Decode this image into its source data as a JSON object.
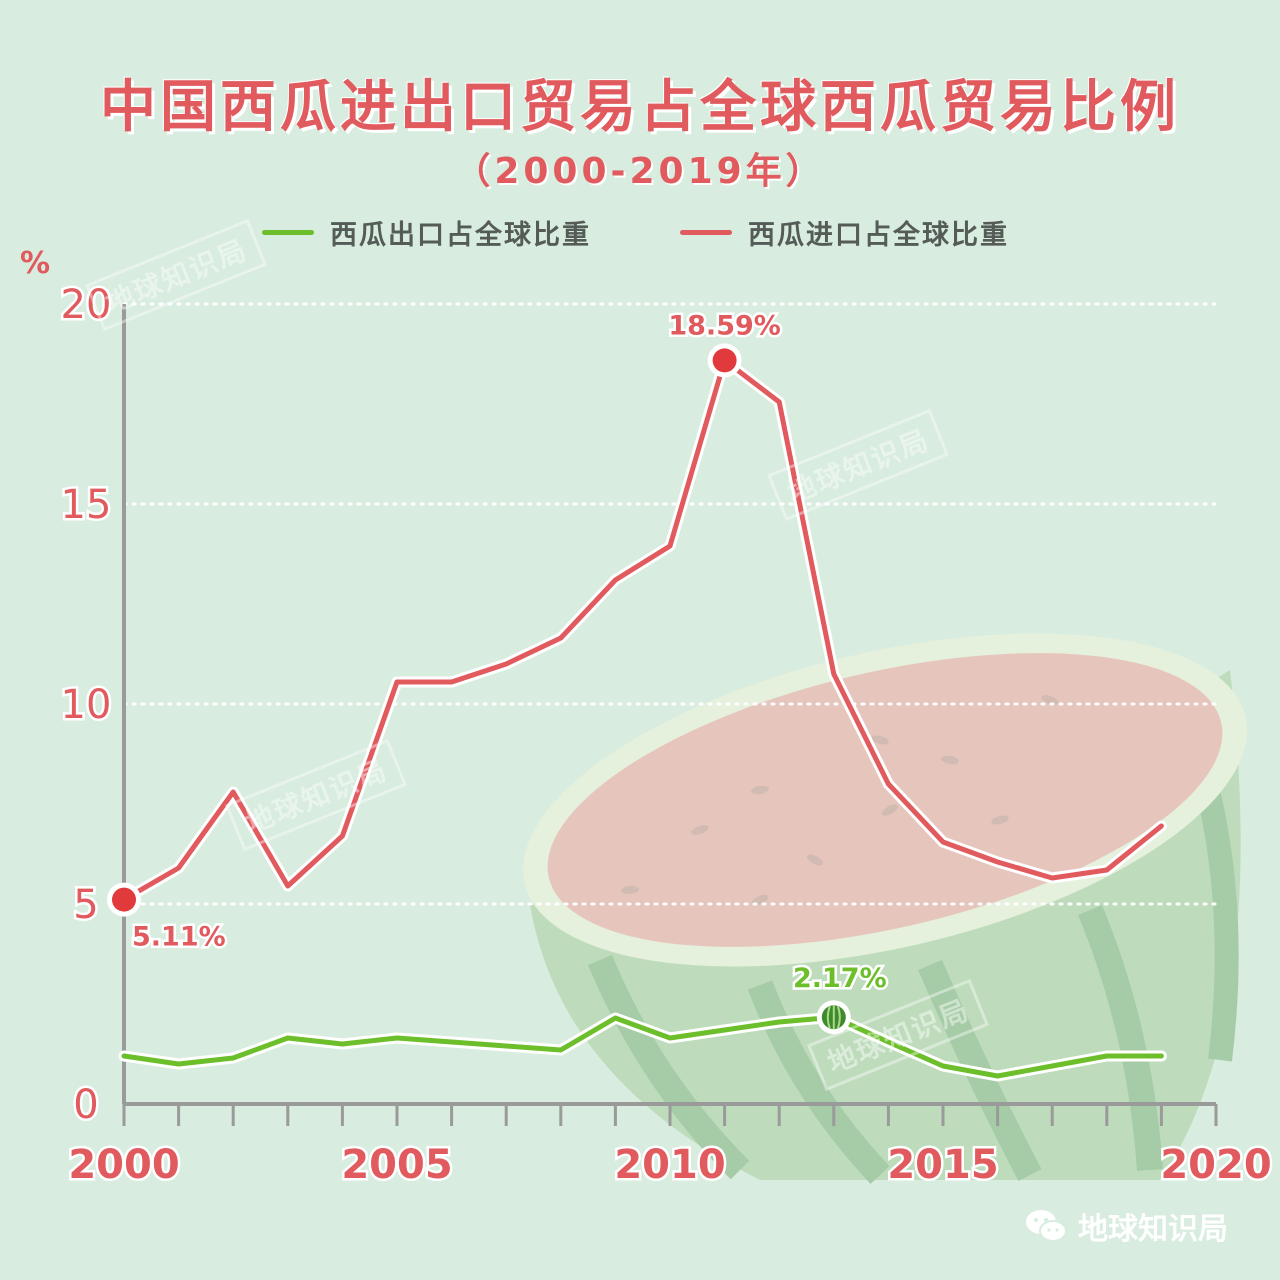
{
  "header": {
    "title": "中国西瓜进出口贸易占全球西瓜贸易比例",
    "subtitle": "（2000-2019年）"
  },
  "legend": {
    "export_label": "西瓜出口占全球比重",
    "import_label": "西瓜进口占全球比重"
  },
  "unit_label": "%",
  "watermark_text": "地球知识局",
  "brand_text": "地球知识局",
  "colors": {
    "export": "#6cbf2a",
    "import": "#e05a5e",
    "background": "#d8ecdf"
  },
  "chart_data": {
    "type": "line",
    "title": "中国西瓜进出口贸易占全球西瓜贸易比例",
    "subtitle": "（2000-2019年）",
    "ylabel": "%",
    "ylim": [
      0,
      20
    ],
    "xlim": [
      2000,
      2020
    ],
    "y_ticks": [
      "0",
      "5",
      "10",
      "15",
      "20"
    ],
    "y_tick_values": [
      0,
      5,
      10,
      15,
      20
    ],
    "x_ticks": [
      "2000",
      "2005",
      "2010",
      "2015",
      "2020"
    ],
    "x_tick_values": [
      2000,
      2005,
      2010,
      2015,
      2020
    ],
    "grid": true,
    "legend_position": "top-center",
    "x": [
      2000,
      2001,
      2002,
      2003,
      2004,
      2005,
      2006,
      2007,
      2008,
      2009,
      2010,
      2011,
      2012,
      2013,
      2014,
      2015,
      2016,
      2017,
      2018,
      2019
    ],
    "series": [
      {
        "name": "西瓜出口占全球比重",
        "color": "#6cbf2a",
        "values": [
          1.2,
          1.0,
          1.15,
          1.65,
          1.5,
          1.65,
          1.55,
          1.45,
          1.35,
          2.15,
          1.65,
          1.85,
          2.05,
          2.17,
          1.55,
          0.95,
          0.7,
          0.95,
          1.2,
          1.2
        ]
      },
      {
        "name": "西瓜进口占全球比重",
        "color": "#e05a5e",
        "values": [
          5.11,
          5.9,
          7.8,
          5.45,
          6.7,
          10.55,
          10.55,
          11.0,
          11.65,
          13.1,
          13.95,
          18.59,
          17.55,
          10.75,
          8.0,
          6.55,
          6.05,
          5.65,
          5.85,
          6.95
        ]
      }
    ],
    "annotations": [
      {
        "series": 1,
        "index": 0,
        "text": "5.11%"
      },
      {
        "series": 1,
        "index": 11,
        "text": "18.59%"
      },
      {
        "series": 0,
        "index": 13,
        "text": "2.17%"
      }
    ]
  }
}
